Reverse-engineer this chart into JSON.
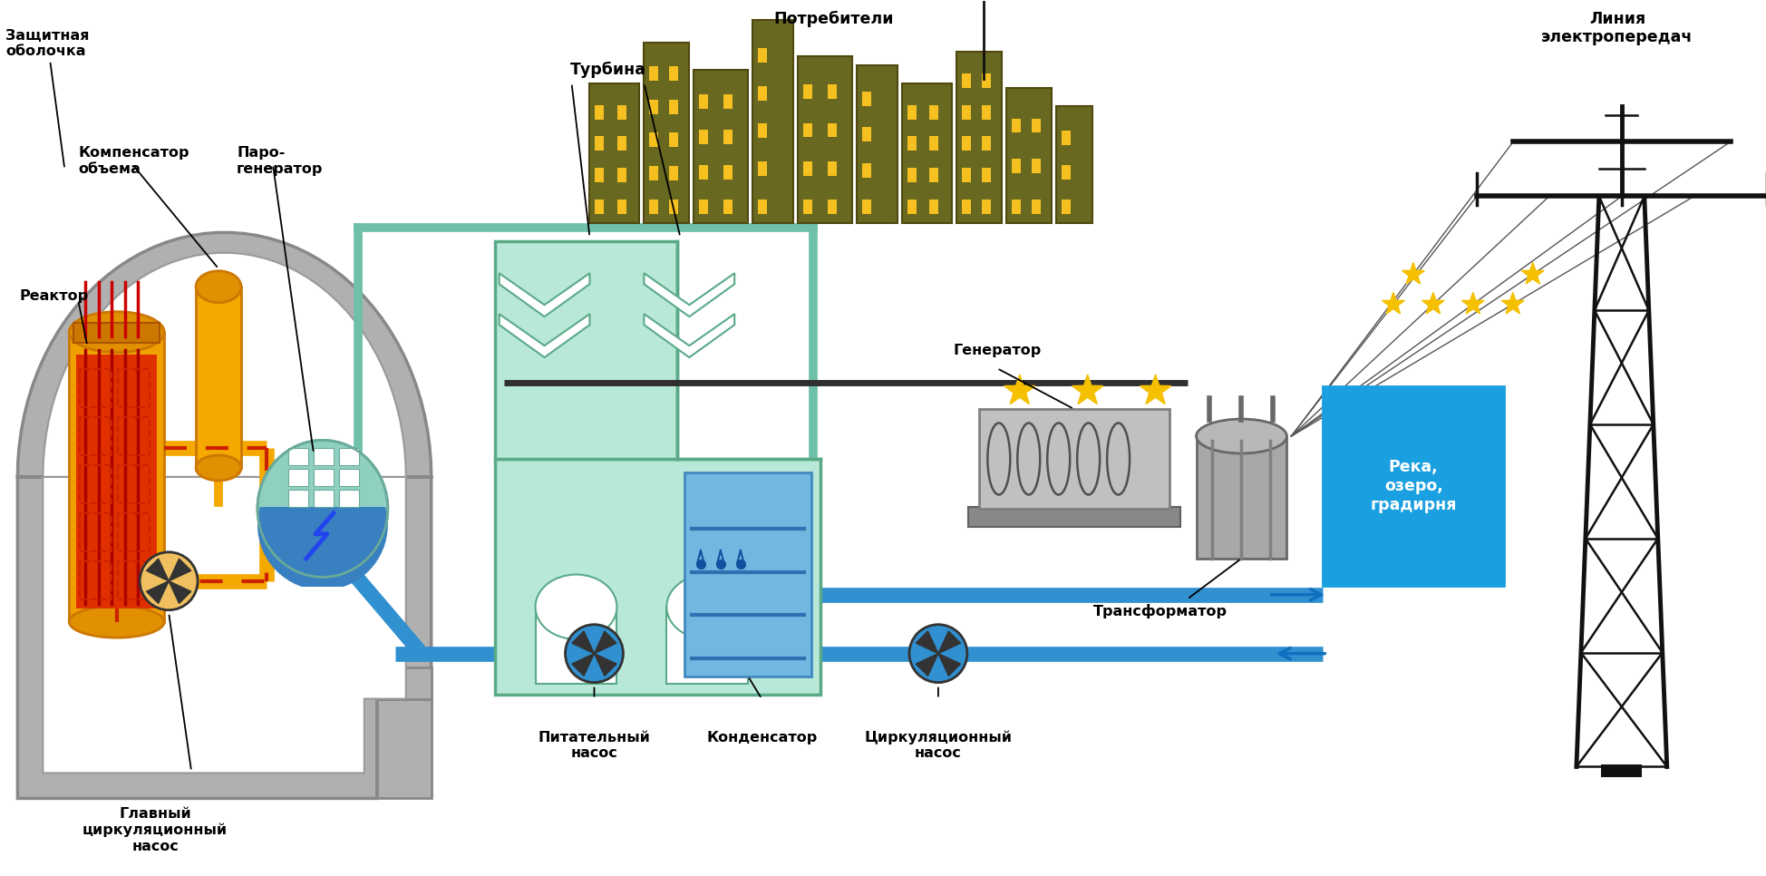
{
  "bg_color": "#ffffff",
  "fig_width": 19.49,
  "fig_height": 9.66,
  "labels": {
    "zashchitnaya_obolochka": "Защитная\nоболочка",
    "reaktor": "Реактор",
    "kompensator": "Компенсатор\nобъема",
    "paro_generator": "Паро-\nгенератор",
    "turbina": "Турбина",
    "generator": "Генератор",
    "transformer": "Трансформатор",
    "potrebiteli": "Потребители",
    "liniya": "Линия\nэлектропередач",
    "reka": "Река,\nозеро,\nградирня",
    "pitatelny_nasos": "Питательный\nнасос",
    "kondensator": "Конденсатор",
    "tsirkulyatsionny_nasos": "Циркуляционный\nнасос",
    "glavny_nasos": "Главный\nциркуляционный\nнасос"
  }
}
